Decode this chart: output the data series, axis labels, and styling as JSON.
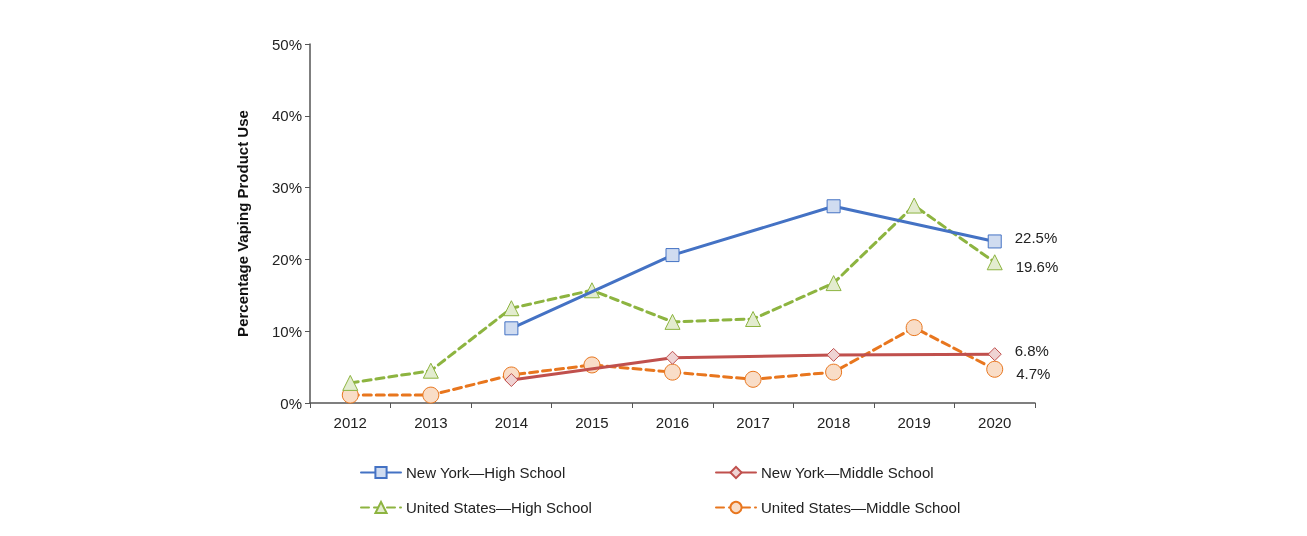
{
  "chart_data": {
    "type": "line",
    "ylabel": "Percentage Vaping Product Use",
    "categories": [
      "2012",
      "2013",
      "2014",
      "2015",
      "2016",
      "2017",
      "2018",
      "2019",
      "2020"
    ],
    "series": [
      {
        "name": "New York—High School",
        "color": "#4472c4",
        "marker": "square",
        "line_style": "solid",
        "values": [
          null,
          null,
          10.4,
          null,
          20.6,
          null,
          27.4,
          null,
          22.5
        ],
        "value_labels": [
          null,
          null,
          null,
          null,
          null,
          null,
          null,
          null,
          "22.5%"
        ]
      },
      {
        "name": "New York—Middle School",
        "color": "#c0504d",
        "marker": "diamond",
        "line_style": "solid",
        "values": [
          null,
          null,
          3.2,
          null,
          6.3,
          null,
          6.7,
          null,
          6.8
        ],
        "value_labels": [
          null,
          null,
          null,
          null,
          null,
          null,
          null,
          null,
          "6.8%"
        ]
      },
      {
        "name": "United States—High School",
        "color": "#8db440",
        "marker": "triangle",
        "line_style": "dashed",
        "values": [
          2.8,
          4.5,
          13.2,
          15.7,
          11.3,
          11.7,
          16.7,
          27.5,
          19.6
        ],
        "value_labels": [
          null,
          null,
          null,
          null,
          null,
          null,
          null,
          null,
          "19.6%"
        ]
      },
      {
        "name": "United States—Middle School",
        "color": "#e8761e",
        "marker": "circle",
        "line_style": "dashed",
        "values": [
          1.1,
          1.1,
          3.9,
          5.3,
          4.3,
          3.3,
          4.3,
          10.5,
          4.7
        ],
        "value_labels": [
          null,
          null,
          null,
          null,
          null,
          null,
          null,
          null,
          "4.7%"
        ]
      }
    ],
    "ylim": [
      0,
      50
    ],
    "yticks": [
      {
        "value": 0,
        "label": "0%"
      },
      {
        "value": 10,
        "label": "10%"
      },
      {
        "value": 20,
        "label": "20%"
      },
      {
        "value": 30,
        "label": "30%"
      },
      {
        "value": 40,
        "label": "40%"
      },
      {
        "value": 50,
        "label": "50%"
      }
    ],
    "grid": false,
    "legend": "bottom"
  }
}
